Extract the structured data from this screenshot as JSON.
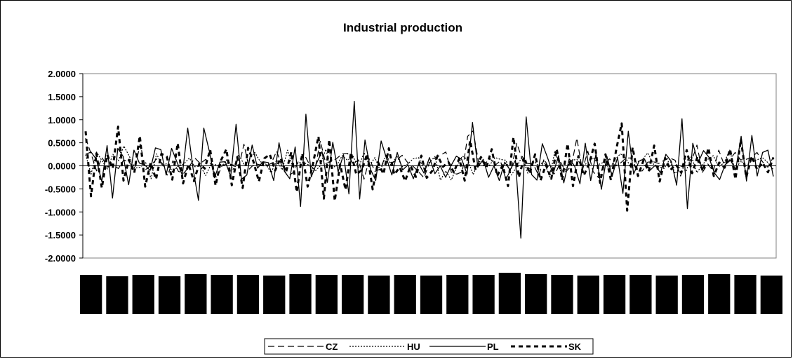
{
  "chart_data": {
    "type": "line",
    "title": "Industrial production",
    "ylim": [
      -2,
      2
    ],
    "y_ticks": [
      "2.0000",
      "1.5000",
      "1.0000",
      "0.5000",
      "0.0000",
      "-0.5000",
      "-1.0000",
      "-1.5000",
      "-2.0000"
    ],
    "grid": false,
    "legend_position": "bottom",
    "x_category_labels_obscured": true,
    "x_label_blocks": 27,
    "series": [
      {
        "name": "CZ",
        "style": "long-dash",
        "values": [
          0.6,
          0.26,
          -0.11,
          0.18,
          -0.02,
          0.02,
          -0.06,
          0.13,
          0.07,
          -0.06,
          0.47,
          -0.08,
          0.01,
          0.15,
          0.06,
          -0.21,
          0.11,
          -0.12,
          -0.16,
          -0.01,
          0.17,
          0.05,
          0.14,
          0.04,
          -0.27,
          0.0,
          0.05,
          0.02,
          -0.05,
          0.47,
          -0.07,
          0.05,
          0.02,
          0.0,
          0.05,
          0.32,
          -0.02,
          -0.22,
          -0.15,
          0.1,
          0.26,
          0.03,
          -0.09,
          0.54,
          0.05,
          0.09,
          0.16,
          0.26,
          0.27,
          0.04,
          0.13,
          -0.29,
          0.15,
          -0.12,
          -0.07,
          0.23,
          0.05,
          0.13,
          0.23,
          0.07,
          -0.01,
          -0.13,
          -0.26,
          0.07,
          0.17,
          0.23,
          0.3,
          -0.14,
          -0.18,
          -0.13,
          0.64,
          0.76,
          0.07,
          0.0,
          0.18,
          0.01,
          0.11,
          -0.29,
          -0.06,
          0.49,
          0.14,
          0.05,
          0.04,
          -0.21,
          0.15,
          -0.08,
          -0.18,
          0.08,
          -0.13,
          0.0,
          0.6,
          -0.1,
          0.32,
          -0.13,
          -0.26,
          0.04,
          0.15,
          0.0,
          0.06,
          0.17,
          0.17,
          -0.12,
          -0.11,
          0.08,
          0.09,
          0.05,
          0.12,
          0.17,
          0.12,
          -0.22,
          0.14,
          0.1,
          0.45,
          -0.14,
          0.04,
          -0.12,
          0.34,
          0.02,
          0.13,
          0.29,
          0.13,
          0.14,
          0.18,
          0.29,
          0.09,
          -0.03,
          0.19
        ]
      },
      {
        "name": "HU",
        "style": "dotted",
        "values": [
          0.24,
          -0.18,
          0.3,
          0.11,
          -0.07,
          0.25,
          0.11,
          0.43,
          0.21,
          -0.05,
          -0.03,
          0.07,
          -0.28,
          0.26,
          0.01,
          0.05,
          -0.14,
          0.01,
          0.04,
          0.17,
          -0.02,
          0.0,
          -0.21,
          0.04,
          0.02,
          0.0,
          0.15,
          -0.08,
          0.24,
          0.04,
          0.14,
          0.29,
          0.09,
          0.04,
          -0.15,
          0.13,
          -0.09,
          0.34,
          -0.05,
          0.07,
          0.07,
          0.01,
          -0.12,
          0.0,
          0.36,
          -0.06,
          0.01,
          0.22,
          0.12,
          0.21,
          -0.05,
          0.29,
          0.0,
          0.18,
          -0.11,
          0.23,
          0.0,
          0.22,
          -0.02,
          0.04,
          0.15,
          0.18,
          -0.06,
          0.08,
          0.2,
          -0.31,
          -0.11,
          -0.31,
          -0.02,
          0.21,
          0.14,
          -0.19,
          0.09,
          0.09,
          0.01,
          0.18,
          0.14,
          0.12,
          -0.2,
          -0.02,
          0.21,
          -0.16,
          0.11,
          0.0,
          0.1,
          -0.24,
          0.33,
          -0.11,
          -0.07,
          0.12,
          0.14,
          0.01,
          0.06,
          0.18,
          0.03,
          0.08,
          -0.07,
          0.14,
          0.26,
          0.16,
          -0.06,
          0.08,
          0.14,
          0.28,
          0.04,
          -0.02,
          -0.06,
          0.14,
          -0.17,
          0.0,
          -0.12,
          0.21,
          -0.15,
          0.03,
          0.14,
          0.22,
          -0.02,
          0.07,
          0.34,
          -0.1,
          0.11,
          0.0,
          0.1,
          0.13,
          0.18,
          0.07,
          -0.08
        ]
      },
      {
        "name": "PL",
        "style": "solid",
        "values": [
          0.25,
          0.3,
          0.14,
          -0.34,
          0.44,
          -0.7,
          0.38,
          0.2,
          -0.41,
          0.34,
          0.06,
          0.02,
          -0.1,
          0.39,
          0.35,
          -0.2,
          0.38,
          0.08,
          -0.2,
          0.82,
          -0.06,
          -0.75,
          0.82,
          0.33,
          -0.26,
          0.08,
          0.09,
          -0.23,
          0.9,
          -0.29,
          -0.2,
          0.45,
          -0.05,
          0.09,
          0.07,
          -0.32,
          0.5,
          -0.12,
          -0.28,
          0.41,
          -0.88,
          1.12,
          -0.24,
          0.06,
          0.31,
          -0.36,
          0.51,
          -0.13,
          0.24,
          -0.61,
          1.4,
          -0.72,
          0.56,
          -0.07,
          -0.32,
          0.54,
          0.16,
          -0.2,
          0.29,
          -0.09,
          0.02,
          -0.28,
          0.04,
          -0.16,
          0.18,
          -0.17,
          0.0,
          -0.25,
          0.0,
          0.21,
          0.14,
          -0.18,
          0.94,
          -0.03,
          0.14,
          -0.25,
          0.0,
          -0.32,
          0.08,
          -0.09,
          0.12,
          -1.57,
          1.06,
          -0.19,
          -0.31,
          0.48,
          0.17,
          -0.18,
          0.22,
          -0.37,
          0.15,
          0.0,
          -0.39,
          0.49,
          -0.32,
          0.26,
          -0.51,
          0.21,
          -0.22,
          0.18,
          -0.6,
          0.75,
          -0.18,
          0.1,
          0.15,
          -0.1,
          0.01,
          -0.15,
          0.25,
          0.1,
          -0.42,
          1.02,
          -0.93,
          0.49,
          0.07,
          0.33,
          0.19,
          -0.15,
          -0.3,
          0.02,
          0.12,
          -0.08,
          0.64,
          -0.33,
          0.66,
          -0.22,
          0.29,
          0.34,
          -0.23
        ]
      },
      {
        "name": "SK",
        "style": "heavy-dash",
        "values": [
          0.75,
          -0.66,
          0.27,
          -0.48,
          0.24,
          -0.06,
          0.85,
          -0.32,
          0.13,
          -0.15,
          0.65,
          -0.45,
          0.07,
          -0.29,
          0.26,
          0.2,
          -0.3,
          0.49,
          -0.38,
          0.04,
          -0.33,
          0.05,
          -0.06,
          0.35,
          -0.43,
          0.12,
          0.36,
          -0.42,
          0.19,
          -0.48,
          0.39,
          0.09,
          -0.34,
          0.16,
          0.25,
          -0.1,
          0.17,
          -0.14,
          0.3,
          -0.57,
          0.27,
          -0.45,
          0.05,
          0.64,
          -0.71,
          0.57,
          -0.76,
          0.03,
          -0.52,
          0.29,
          -0.19,
          -0.09,
          0.26,
          -0.51,
          0.08,
          -0.18,
          0.38,
          -0.19,
          -0.03,
          -0.33,
          0.0,
          -0.24,
          0.22,
          -0.26,
          -0.11,
          0.22,
          -0.02,
          0.08,
          -0.14,
          0.16,
          -0.32,
          0.55,
          -0.09,
          0.19,
          -0.04,
          0.36,
          -0.22,
          0.01,
          -0.44,
          0.62,
          -0.25,
          0.19,
          -0.17,
          0.25,
          -0.32,
          0.02,
          -0.28,
          0.36,
          -0.31,
          0.48,
          -0.44,
          0.21,
          -0.21,
          0.05,
          0.48,
          -0.37,
          0.25,
          -0.31,
          0.36,
          0.92,
          -0.97,
          0.4,
          -0.22,
          0.11,
          -0.12,
          0.44,
          -0.34,
          0.17,
          -0.09,
          0.03,
          -0.15,
          0.34,
          -0.16,
          0.2,
          -0.12,
          0.39,
          -0.22,
          0.07,
          -0.04,
          0.36,
          -0.29,
          0.57,
          -0.25,
          0.21,
          -0.08,
          0.07,
          -0.14,
          0.18
        ]
      }
    ]
  }
}
